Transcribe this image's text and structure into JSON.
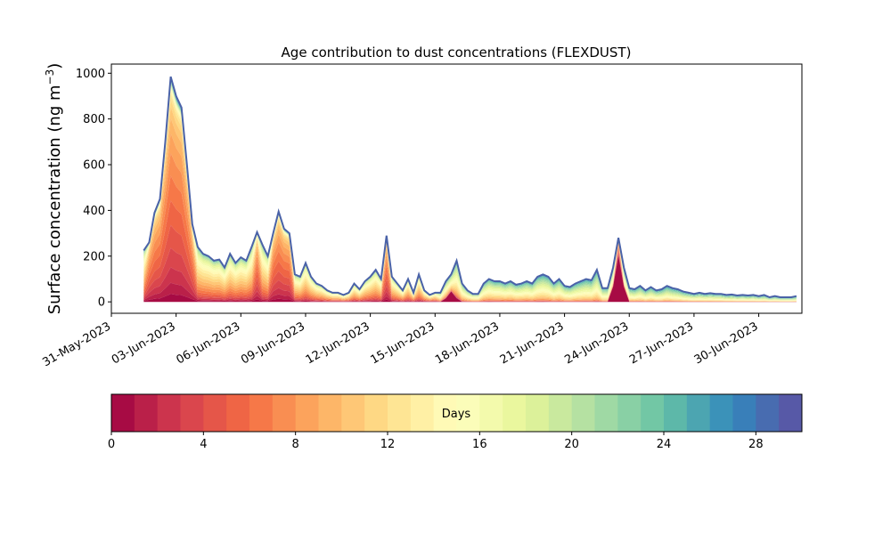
{
  "chart_data": {
    "type": "area",
    "title": "Age contribution to dust concentrations (FLEXDUST)",
    "ylabel_main": "Surface concentration (ng m",
    "ylabel_sup": "−3",
    "ylabel_close": ")",
    "xlabel": "",
    "x_start": "2023-05-31",
    "x_end": "2023-07-02",
    "ylim": [
      -50,
      1040
    ],
    "yticks": [
      0,
      200,
      400,
      600,
      800,
      1000
    ],
    "xticks": [
      "31-May-2023",
      "03-Jun-2023",
      "06-Jun-2023",
      "09-Jun-2023",
      "12-Jun-2023",
      "15-Jun-2023",
      "18-Jun-2023",
      "21-Jun-2023",
      "24-Jun-2023",
      "27-Jun-2023",
      "30-Jun-2023"
    ],
    "total_series": [
      [
        "2023-06-01 12:00",
        225
      ],
      [
        "2023-06-01 18:00",
        260
      ],
      [
        "2023-06-02 00:00",
        390
      ],
      [
        "2023-06-02 06:00",
        450
      ],
      [
        "2023-06-02 12:00",
        700
      ],
      [
        "2023-06-02 18:00",
        985
      ],
      [
        "2023-06-03 00:00",
        900
      ],
      [
        "2023-06-03 06:00",
        850
      ],
      [
        "2023-06-03 12:00",
        600
      ],
      [
        "2023-06-03 18:00",
        340
      ],
      [
        "2023-06-04 00:00",
        240
      ],
      [
        "2023-06-04 06:00",
        210
      ],
      [
        "2023-06-04 12:00",
        200
      ],
      [
        "2023-06-04 18:00",
        180
      ],
      [
        "2023-06-05 00:00",
        185
      ],
      [
        "2023-06-05 06:00",
        150
      ],
      [
        "2023-06-05 12:00",
        210
      ],
      [
        "2023-06-05 18:00",
        170
      ],
      [
        "2023-06-06 00:00",
        195
      ],
      [
        "2023-06-06 06:00",
        180
      ],
      [
        "2023-06-06 12:00",
        240
      ],
      [
        "2023-06-06 18:00",
        305
      ],
      [
        "2023-06-07 00:00",
        250
      ],
      [
        "2023-06-07 06:00",
        200
      ],
      [
        "2023-06-07 12:00",
        300
      ],
      [
        "2023-06-07 18:00",
        395
      ],
      [
        "2023-06-08 00:00",
        320
      ],
      [
        "2023-06-08 06:00",
        300
      ],
      [
        "2023-06-08 12:00",
        120
      ],
      [
        "2023-06-08 18:00",
        110
      ],
      [
        "2023-06-09 00:00",
        170
      ],
      [
        "2023-06-09 06:00",
        110
      ],
      [
        "2023-06-09 12:00",
        80
      ],
      [
        "2023-06-09 18:00",
        70
      ],
      [
        "2023-06-10 00:00",
        50
      ],
      [
        "2023-06-10 06:00",
        40
      ],
      [
        "2023-06-10 12:00",
        40
      ],
      [
        "2023-06-10 18:00",
        30
      ],
      [
        "2023-06-11 00:00",
        40
      ],
      [
        "2023-06-11 06:00",
        80
      ],
      [
        "2023-06-11 12:00",
        55
      ],
      [
        "2023-06-11 18:00",
        90
      ],
      [
        "2023-06-12 00:00",
        110
      ],
      [
        "2023-06-12 06:00",
        140
      ],
      [
        "2023-06-12 12:00",
        100
      ],
      [
        "2023-06-12 18:00",
        290
      ],
      [
        "2023-06-13 00:00",
        110
      ],
      [
        "2023-06-13 06:00",
        80
      ],
      [
        "2023-06-13 12:00",
        50
      ],
      [
        "2023-06-13 18:00",
        100
      ],
      [
        "2023-06-14 00:00",
        40
      ],
      [
        "2023-06-14 06:00",
        120
      ],
      [
        "2023-06-14 12:00",
        50
      ],
      [
        "2023-06-14 18:00",
        30
      ],
      [
        "2023-06-15 00:00",
        40
      ],
      [
        "2023-06-15 06:00",
        40
      ],
      [
        "2023-06-15 12:00",
        90
      ],
      [
        "2023-06-15 18:00",
        120
      ],
      [
        "2023-06-16 00:00",
        180
      ],
      [
        "2023-06-16 06:00",
        80
      ],
      [
        "2023-06-16 12:00",
        50
      ],
      [
        "2023-06-16 18:00",
        35
      ],
      [
        "2023-06-17 00:00",
        35
      ],
      [
        "2023-06-17 06:00",
        80
      ],
      [
        "2023-06-17 12:00",
        100
      ],
      [
        "2023-06-17 18:00",
        90
      ],
      [
        "2023-06-18 00:00",
        90
      ],
      [
        "2023-06-18 06:00",
        80
      ],
      [
        "2023-06-18 12:00",
        90
      ],
      [
        "2023-06-18 18:00",
        75
      ],
      [
        "2023-06-19 00:00",
        80
      ],
      [
        "2023-06-19 06:00",
        90
      ],
      [
        "2023-06-19 12:00",
        80
      ],
      [
        "2023-06-19 18:00",
        110
      ],
      [
        "2023-06-20 00:00",
        120
      ],
      [
        "2023-06-20 06:00",
        110
      ],
      [
        "2023-06-20 12:00",
        80
      ],
      [
        "2023-06-20 18:00",
        100
      ],
      [
        "2023-06-21 00:00",
        70
      ],
      [
        "2023-06-21 06:00",
        65
      ],
      [
        "2023-06-21 12:00",
        80
      ],
      [
        "2023-06-21 18:00",
        90
      ],
      [
        "2023-06-22 00:00",
        100
      ],
      [
        "2023-06-22 06:00",
        95
      ],
      [
        "2023-06-22 12:00",
        140
      ],
      [
        "2023-06-22 18:00",
        60
      ],
      [
        "2023-06-23 00:00",
        60
      ],
      [
        "2023-06-23 06:00",
        150
      ],
      [
        "2023-06-23 12:00",
        280
      ],
      [
        "2023-06-23 18:00",
        150
      ],
      [
        "2023-06-24 00:00",
        60
      ],
      [
        "2023-06-24 06:00",
        55
      ],
      [
        "2023-06-24 12:00",
        70
      ],
      [
        "2023-06-24 18:00",
        50
      ],
      [
        "2023-06-25 00:00",
        65
      ],
      [
        "2023-06-25 06:00",
        50
      ],
      [
        "2023-06-25 12:00",
        55
      ],
      [
        "2023-06-25 18:00",
        70
      ],
      [
        "2023-06-26 00:00",
        60
      ],
      [
        "2023-06-26 06:00",
        55
      ],
      [
        "2023-06-26 12:00",
        45
      ],
      [
        "2023-06-26 18:00",
        40
      ],
      [
        "2023-06-27 00:00",
        35
      ],
      [
        "2023-06-27 06:00",
        40
      ],
      [
        "2023-06-27 12:00",
        35
      ],
      [
        "2023-06-27 18:00",
        38
      ],
      [
        "2023-06-28 00:00",
        35
      ],
      [
        "2023-06-28 06:00",
        35
      ],
      [
        "2023-06-28 12:00",
        30
      ],
      [
        "2023-06-28 18:00",
        32
      ],
      [
        "2023-06-29 00:00",
        28
      ],
      [
        "2023-06-29 06:00",
        30
      ],
      [
        "2023-06-29 12:00",
        28
      ],
      [
        "2023-06-29 18:00",
        30
      ],
      [
        "2023-06-30 00:00",
        25
      ],
      [
        "2023-06-30 06:00",
        30
      ],
      [
        "2023-06-30 12:00",
        20
      ],
      [
        "2023-06-30 18:00",
        25
      ],
      [
        "2023-07-01 00:00",
        20
      ],
      [
        "2023-07-01 06:00",
        20
      ],
      [
        "2023-07-01 12:00",
        20
      ],
      [
        "2023-07-01 18:00",
        25
      ]
    ],
    "young_age_events": [
      {
        "center": "2023-06-23 12:00",
        "days": [
          0,
          1
        ],
        "peak": 200
      },
      {
        "center": "2023-06-15 18:00",
        "days": [
          0,
          1
        ],
        "peak": 45
      }
    ],
    "colorbar": {
      "label": "Days",
      "min": 0,
      "max": 30,
      "ticks": [
        0,
        4,
        8,
        12,
        16,
        20,
        24,
        28
      ],
      "bins": 30,
      "cmap": "Spectral"
    },
    "line_color": "#4a62a8"
  }
}
